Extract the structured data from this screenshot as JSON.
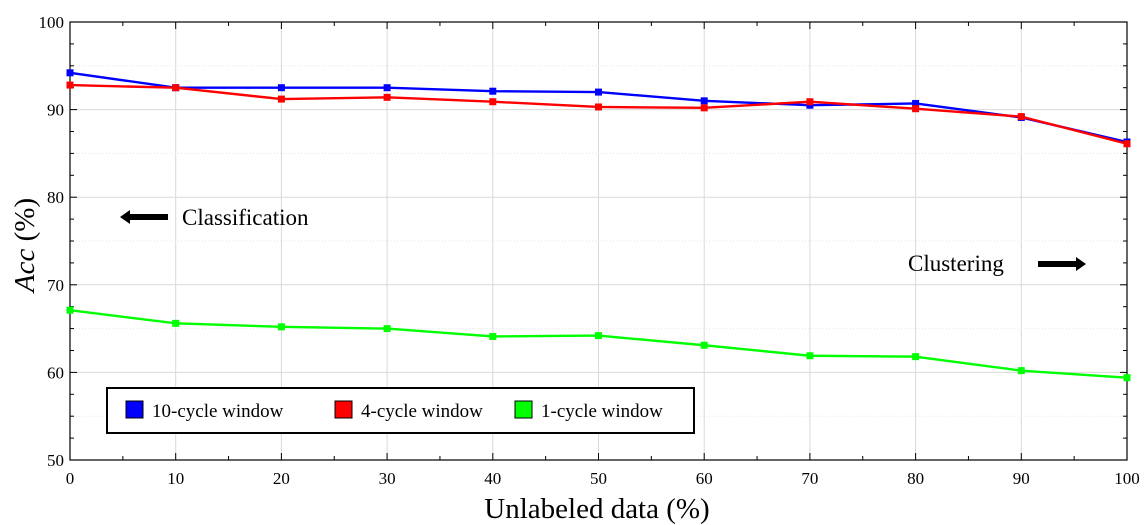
{
  "chart_data": {
    "type": "line",
    "title": "",
    "xlabel": "Unlabeled data (%)",
    "ylabel_main": "Acc",
    "ylabel_unit": " (%)",
    "x": [
      0,
      10,
      20,
      30,
      40,
      50,
      60,
      70,
      80,
      90,
      100
    ],
    "xlim": [
      0,
      100
    ],
    "ylim": [
      50,
      100
    ],
    "xticks": [
      0,
      10,
      20,
      30,
      40,
      50,
      60,
      70,
      80,
      90,
      100
    ],
    "yticks": [
      50,
      60,
      70,
      80,
      90,
      100
    ],
    "grid": true,
    "legend_position": "bottom-left",
    "series": [
      {
        "name": "10-cycle window",
        "color": "#0000ff",
        "values": [
          94.2,
          92.5,
          92.5,
          92.5,
          92.1,
          92.0,
          91.0,
          90.5,
          90.7,
          89.1,
          86.3
        ]
      },
      {
        "name": "4-cycle window",
        "color": "#ff0000",
        "values": [
          92.8,
          92.5,
          91.2,
          91.4,
          90.9,
          90.3,
          90.2,
          90.9,
          90.1,
          89.2,
          86.1
        ]
      },
      {
        "name": "1-cycle window",
        "color": "#00ff00",
        "values": [
          67.1,
          65.6,
          65.2,
          65.0,
          64.1,
          64.2,
          63.1,
          61.9,
          61.8,
          60.2,
          59.4
        ]
      }
    ],
    "annotations": [
      {
        "text": "Classification",
        "arrow": "left",
        "x": 3,
        "y": 78
      },
      {
        "text": "Clustering",
        "arrow": "right",
        "x": 84,
        "y": 71
      }
    ]
  }
}
